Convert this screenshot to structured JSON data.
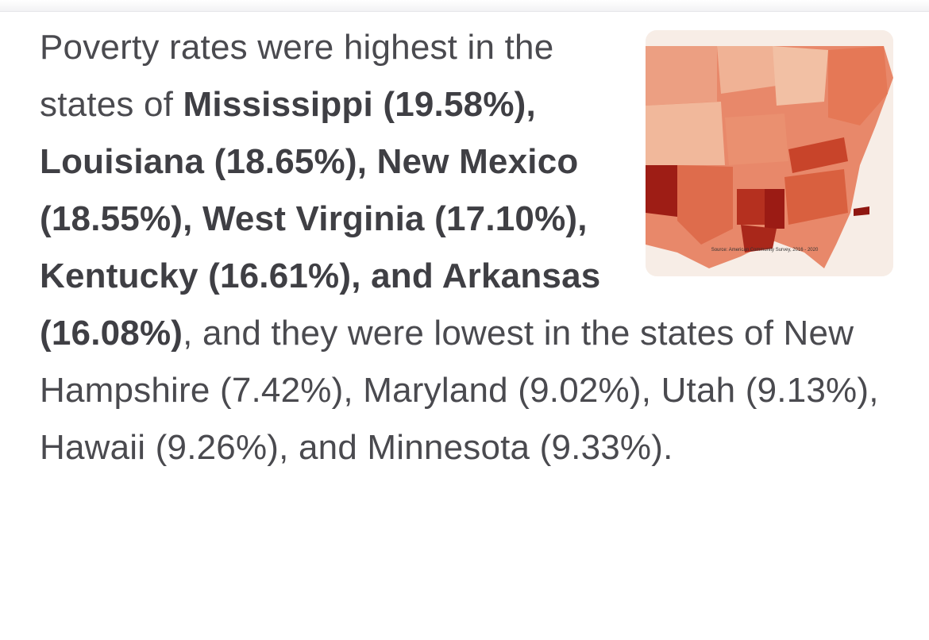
{
  "paragraph": {
    "segments": [
      {
        "text": "Poverty rates were highest in the states of ",
        "bold": false
      },
      {
        "text": "Mississippi (19.58%), Louisiana (18.65%), New Mexico (18.55%), West Virginia (17.10%), Kentucky (16.61%), and Arkansas (16.08%)",
        "bold": true
      },
      {
        "text": ", and they were lowest in the states of New Hampshire (7.42%), Maryland (9.02%), Utah (9.13%), Hawaii (9.26%), and Minnesota (9.33%).",
        "bold": false
      }
    ]
  },
  "thumbnail": {
    "caption": "Source: American Community Survey, 2016 - 2020"
  }
}
